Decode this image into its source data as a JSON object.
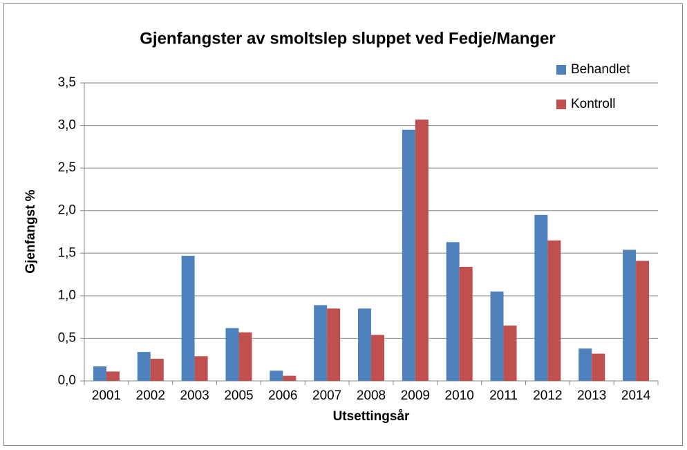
{
  "chart_data": {
    "type": "bar",
    "title": "Gjenfangster av smoltslep sluppet ved Fedje/Manger",
    "x_label": "Utsettingsår",
    "y_label": "Gjenfangst %",
    "categories": [
      "2001",
      "2002",
      "2003",
      "2005",
      "2006",
      "2007",
      "2008",
      "2009",
      "2010",
      "2011",
      "2012",
      "2013",
      "2014"
    ],
    "series": [
      {
        "name": "Behandlet",
        "color": "#4f81bd",
        "values": [
          0.17,
          0.34,
          1.47,
          0.62,
          0.12,
          0.89,
          0.85,
          2.95,
          1.63,
          1.05,
          1.95,
          0.38,
          1.54
        ]
      },
      {
        "name": "Kontroll",
        "color": "#c0504d",
        "values": [
          0.11,
          0.26,
          0.29,
          0.57,
          0.06,
          0.85,
          0.54,
          3.07,
          1.34,
          0.65,
          1.65,
          0.32,
          1.41
        ]
      }
    ],
    "ylim": [
      0,
      3.5
    ],
    "yticks": [
      {
        "value": 0,
        "label": "0,0"
      },
      {
        "value": 0.5,
        "label": "0,5"
      },
      {
        "value": 1,
        "label": "1,0"
      },
      {
        "value": 1.5,
        "label": "1,5"
      },
      {
        "value": 2,
        "label": "2,0"
      },
      {
        "value": 2.5,
        "label": "2,5"
      },
      {
        "value": 3,
        "label": "3,0"
      },
      {
        "value": 3.5,
        "label": "3,5"
      }
    ],
    "grid": true,
    "legend": "top-right"
  }
}
